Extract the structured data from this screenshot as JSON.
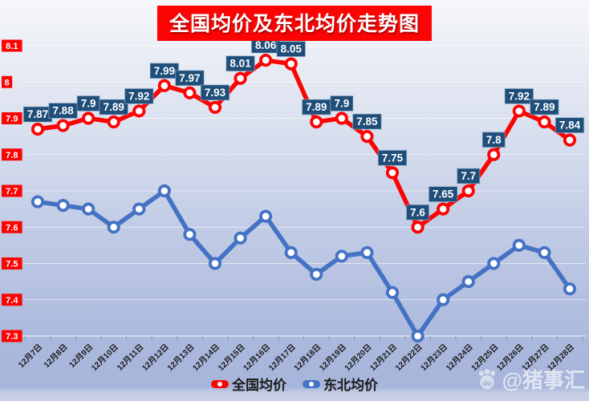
{
  "chart_data": {
    "type": "line",
    "title": "全国均价及东北均价走势图",
    "xlabel": "",
    "ylabel": "",
    "ylim": [
      7.3,
      8.1
    ],
    "y_tick_step": 0.1,
    "y_tick_labels": [
      "8.1",
      "8",
      "7.9",
      "7.8",
      "7.7",
      "7.6",
      "7.5",
      "7.4",
      "7.3"
    ],
    "grid": "horizontal",
    "legend_position": "bottom",
    "axis_label_bg": "#fb0404",
    "categories": [
      "12月7日",
      "12月8日",
      "12月9日",
      "12月10日",
      "12月11日",
      "12月12日",
      "12月13日",
      "12月14日",
      "12月15日",
      "12月16日",
      "12月17日",
      "12月18日",
      "12月19日",
      "12月20日",
      "12月21日",
      "12月22日",
      "12月23日",
      "12月24日",
      "12月25日",
      "12月26日",
      "12月27日",
      "12月28日"
    ],
    "series": [
      {
        "name": "全国均价",
        "color": "#fb0404",
        "label_box_color": "#1f4e79",
        "data_labels": true,
        "values": [
          7.87,
          7.88,
          7.9,
          7.89,
          7.92,
          7.99,
          7.97,
          7.93,
          8.01,
          8.06,
          8.05,
          7.89,
          7.9,
          7.85,
          7.75,
          7.6,
          7.65,
          7.7,
          7.8,
          7.92,
          7.89,
          7.84
        ]
      },
      {
        "name": "东北均价",
        "color": "#4472c4",
        "data_labels": false,
        "values": [
          7.67,
          7.66,
          7.65,
          7.6,
          7.65,
          7.7,
          7.58,
          7.5,
          7.57,
          7.63,
          7.53,
          7.47,
          7.52,
          7.53,
          7.42,
          7.3,
          7.4,
          7.45,
          7.5,
          7.55,
          7.53,
          7.43
        ]
      }
    ]
  },
  "watermark": {
    "handle": "@猪事汇",
    "paw_label": "du"
  }
}
